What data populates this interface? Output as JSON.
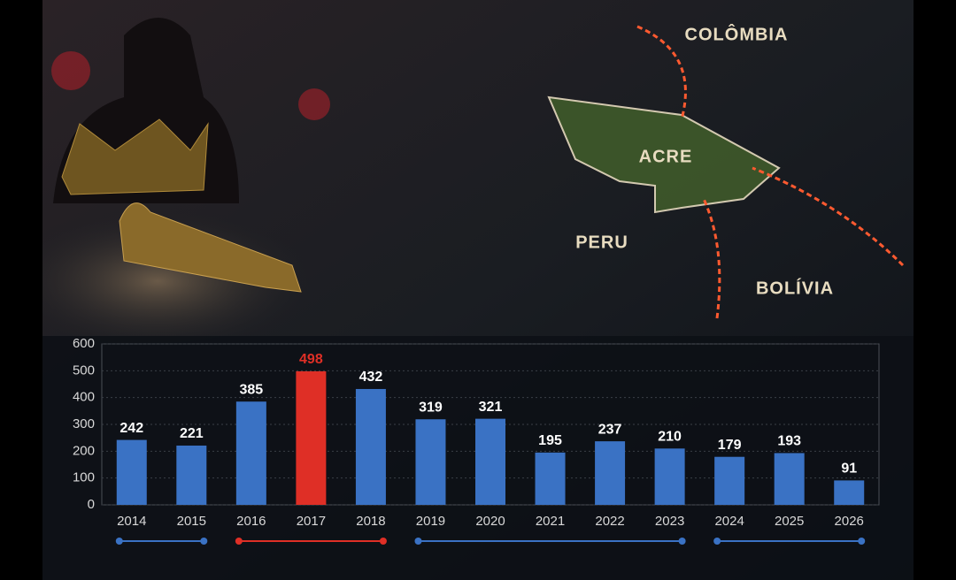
{
  "chart_data": {
    "type": "bar",
    "categories": [
      "2014",
      "2015",
      "2016",
      "2017",
      "2018",
      "2019",
      "2020",
      "2021",
      "2022",
      "2023",
      "2024",
      "2025",
      "2026"
    ],
    "values": [
      242,
      221,
      385,
      498,
      432,
      319,
      321,
      195,
      237,
      210,
      179,
      193,
      91
    ],
    "color": "#3a72c4",
    "highlight_index": 3,
    "highlight_color": "#df2f26",
    "ylim": [
      0,
      600
    ],
    "yticks": [
      0,
      100,
      200,
      300,
      400,
      500,
      600
    ],
    "grid": true
  },
  "map_labels": [
    "COLÔMBIA",
    "ACRE",
    "PERU",
    "BOLÍVIA"
  ]
}
